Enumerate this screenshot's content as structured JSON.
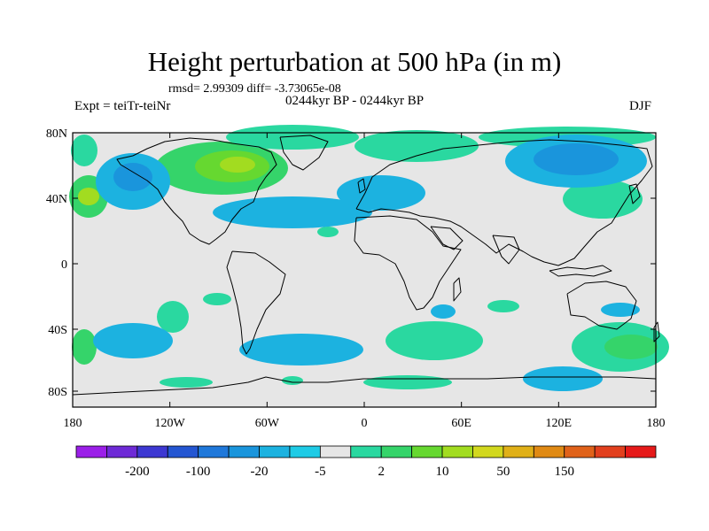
{
  "title": "Height perturbation at 500 hPa (in m)",
  "stats": "rmsd= 2.99309 diff= -3.73065e-08",
  "period": "0244kyr BP - 0244kyr BP",
  "experiment": "Expt = teiTr-teiNr",
  "season": "DJF",
  "axes": {
    "lat_labels": [
      "80N",
      "40N",
      "0",
      "40S",
      "80S"
    ],
    "lon_labels": [
      "180",
      "120W",
      "60W",
      "0",
      "60E",
      "120E",
      "180"
    ]
  },
  "colorbar": {
    "labels": [
      "-200",
      "-100",
      "-20",
      "-5",
      "2",
      "10",
      "50",
      "150"
    ],
    "colors": [
      "#9b1fe8",
      "#6e2ad6",
      "#3d38d2",
      "#2456d2",
      "#1f78da",
      "#1a95dc",
      "#1cb2e0",
      "#1ecbe6",
      "#e6e6e6",
      "#2ad8a0",
      "#35d46a",
      "#66d830",
      "#a2dc20",
      "#d2d81e",
      "#e0b018",
      "#e08a14",
      "#e0621a",
      "#e2401e",
      "#e61a1a"
    ]
  },
  "map_style": {
    "background": "#e6e6e6",
    "coastline": "#000000"
  }
}
